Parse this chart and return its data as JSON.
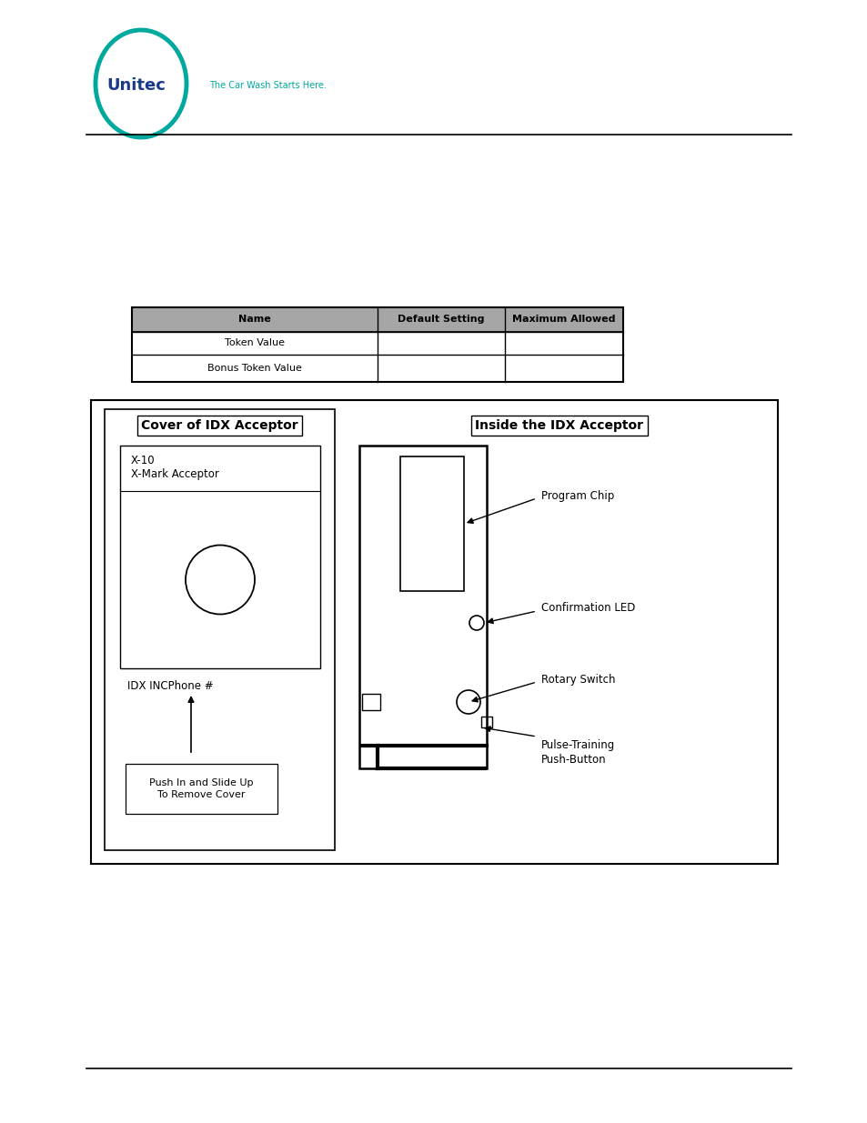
{
  "bg_color": "#ffffff",
  "logo_circle_color": "#00a99d",
  "logo_text_color": "#1a3a8c",
  "logo_tagline_color": "#00a99d",
  "line_color": "#000000",
  "table_header_bg": "#a6a6a6",
  "table_header_text": [
    "Name",
    "Default Setting",
    "Maximum Allowed"
  ],
  "table_rows": [
    [
      "Token Value",
      "",
      ""
    ],
    [
      "Bonus Token Value",
      "",
      ""
    ]
  ],
  "table_text_color": "#000000",
  "cover_title": "Cover of IDX Acceptor",
  "inside_title": "Inside the IDX Acceptor",
  "inside_labels": [
    "Program Chip",
    "Confirmation LED",
    "Rotary Switch",
    "Pulse-Training\nPush-Button"
  ],
  "cover_sub_label": "IDX INCPhone #",
  "cover_push_label": "Push In and Slide Up\nTo Remove Cover",
  "cover_x10_line1": "X-10",
  "cover_x10_line2": "X-Mark Acceptor"
}
